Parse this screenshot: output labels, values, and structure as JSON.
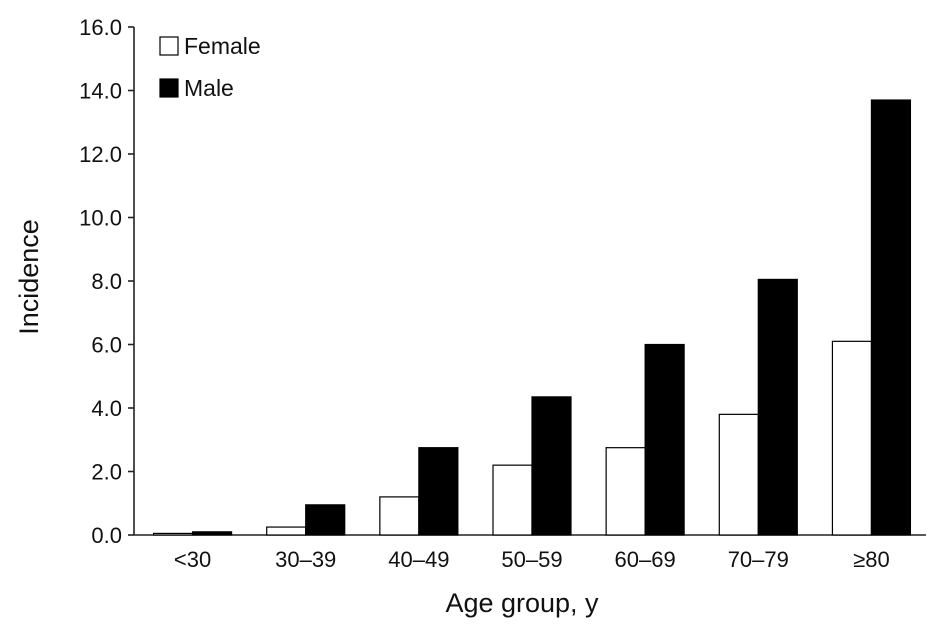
{
  "chart_data": {
    "type": "bar",
    "categories": [
      "<30",
      "30–39",
      "40–49",
      "50–59",
      "60–69",
      "70–79",
      "≥80"
    ],
    "series": [
      {
        "name": "Female",
        "values": [
          0.05,
          0.25,
          1.2,
          2.2,
          2.75,
          3.8,
          6.1
        ],
        "color": "#ffffff"
      },
      {
        "name": "Male",
        "values": [
          0.1,
          0.95,
          2.75,
          4.35,
          6.0,
          8.05,
          13.7
        ],
        "color": "#000000"
      }
    ],
    "xlabel": "Age group, y",
    "ylabel": "Incidence",
    "ylim": [
      0,
      16
    ],
    "yticks": [
      "0.0",
      "2.0",
      "4.0",
      "6.0",
      "8.0",
      "10.0",
      "12.0",
      "14.0",
      "16.0"
    ],
    "legend_position": "top-left",
    "grid": false
  }
}
